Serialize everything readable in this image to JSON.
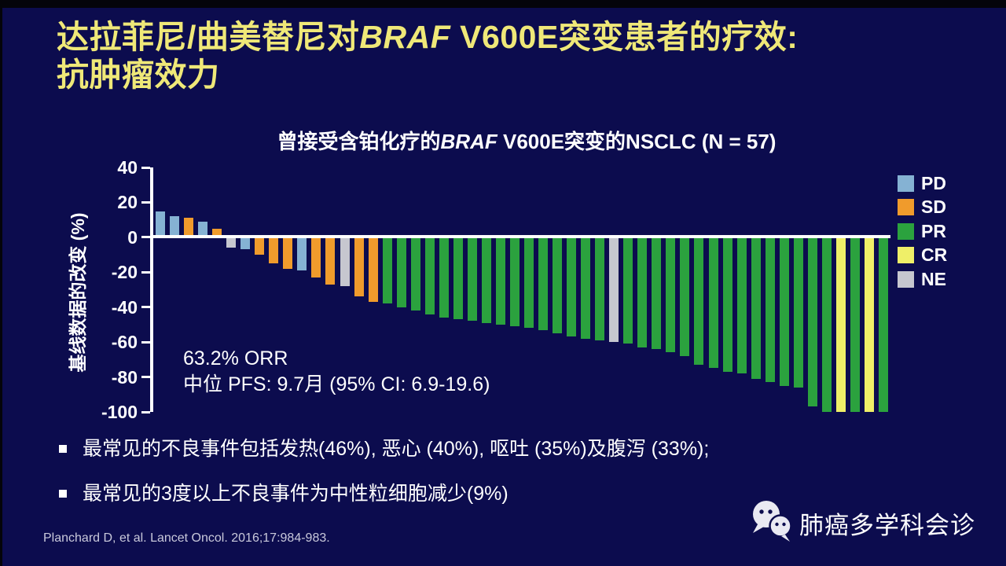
{
  "slide": {
    "title": {
      "pre": "达拉菲尼/曲美替尼对",
      "italic": "BRAF",
      "post": " V600E突变患者的疗效:",
      "line2": "抗肿瘤效力"
    }
  },
  "chart": {
    "title": {
      "pre": "曾接受含铂化疗的",
      "italic": "BRAF",
      "post": " V600E突变的NSCLC (N = 57)"
    },
    "y_axis_label": "基线数据的改变 (%)",
    "annotation": {
      "orr": "63.2% ORR",
      "pfs": "中位 PFS: 9.7月 (95% CI: 6.9-19.6)"
    }
  },
  "chart_data": {
    "type": "bar",
    "subtype": "waterfall",
    "title": "曾接受含铂化疗的BRAF V600E突变的NSCLC (N = 57)",
    "xlabel": "",
    "ylabel": "基线数据的改变 (%)",
    "ylim": [
      -100,
      40
    ],
    "yticks": [
      40,
      20,
      0,
      -20,
      -40,
      -60,
      -80,
      -100
    ],
    "grid": false,
    "legend_position": "top-right",
    "legend": [
      "PD",
      "SD",
      "PR",
      "CR",
      "NE"
    ],
    "colors": {
      "PD": "#85B2D3",
      "SD": "#F09B2C",
      "PR": "#2BA23E",
      "CR": "#EFEF68",
      "NE": "#C6C7CF"
    },
    "values": [
      15,
      12,
      11,
      9,
      5,
      -6,
      -7,
      -10,
      -15,
      -18,
      -19,
      -23,
      -27,
      -28,
      -34,
      -37,
      -38,
      -40,
      -42,
      -44,
      -46,
      -47,
      -48,
      -49,
      -50,
      -51,
      -52,
      -53,
      -55,
      -57,
      -58,
      -59,
      -60,
      -61,
      -63,
      -64,
      -66,
      -68,
      -73,
      -75,
      -77,
      -78,
      -81,
      -83,
      -85,
      -86,
      -97,
      -100,
      -100,
      -100,
      -100,
      -100
    ],
    "categories": [
      "PD",
      "PD",
      "SD",
      "PD",
      "SD",
      "NE",
      "PD",
      "SD",
      "SD",
      "SD",
      "PD",
      "SD",
      "SD",
      "NE",
      "SD",
      "SD",
      "PR",
      "PR",
      "PR",
      "PR",
      "PR",
      "PR",
      "PR",
      "PR",
      "PR",
      "PR",
      "PR",
      "PR",
      "PR",
      "PR",
      "PR",
      "PR",
      "NE",
      "PR",
      "PR",
      "PR",
      "PR",
      "PR",
      "PR",
      "PR",
      "PR",
      "PR",
      "PR",
      "PR",
      "PR",
      "PR",
      "PR",
      "PR",
      "CR",
      "PR",
      "CR",
      "PR"
    ]
  },
  "bullets": {
    "items": [
      {
        "text": "最常见的不良事件包括发热(46%), 恶心 (40%), 呕吐 (35%)及腹泻 (33%);"
      },
      {
        "text": "最常见的3度以上不良事件为中性粒细胞减少(9%)"
      }
    ]
  },
  "footer": {
    "citation": "Planchard D, et al. Lancet Oncol. 2016;17:984-983.",
    "watermark_text": "肺癌多学科会诊"
  }
}
